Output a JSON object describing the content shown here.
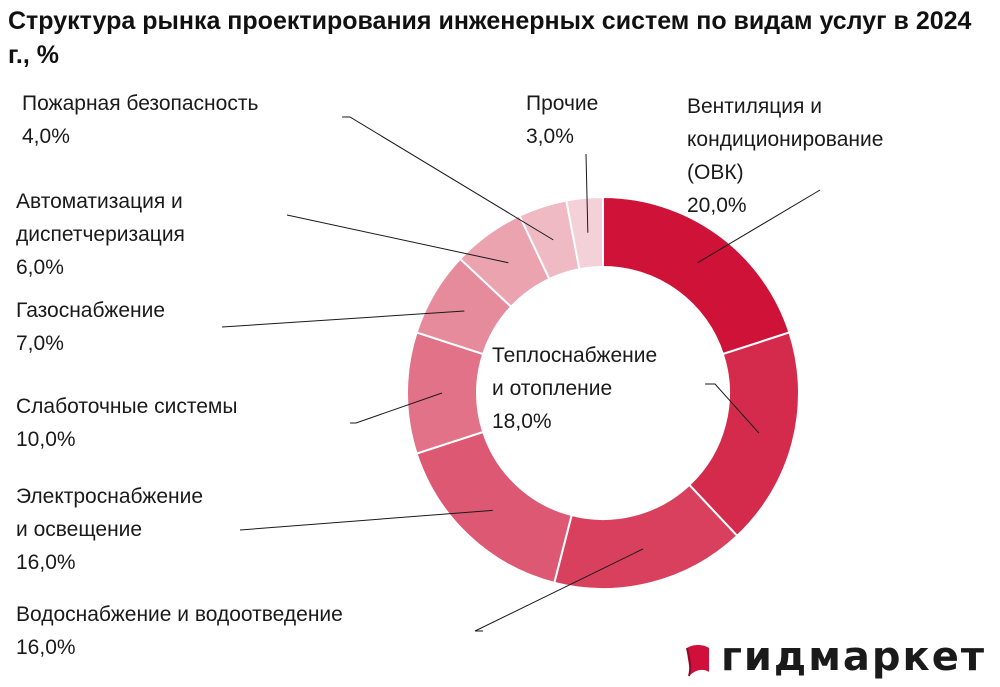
{
  "title": "Структура рынка проектирования инженерных систем по видам услуг в 2024 г., %",
  "chart_data": {
    "type": "pie",
    "variant": "donut",
    "title": "Структура рынка проектирования инженерных систем по видам услуг в 2024 г., %",
    "unit": "%",
    "slices": [
      {
        "label": "Вентиляция и кондиционирование (ОВК)",
        "value": 20.0,
        "display": "20,0%",
        "color": "#cf1237"
      },
      {
        "label": "Теплоснабжение и отопление",
        "value": 18.0,
        "display": "18,0%",
        "color": "#d42b4d"
      },
      {
        "label": "Водоснабжение и водоотведение",
        "value": 16.0,
        "display": "16,0%",
        "color": "#d8405d"
      },
      {
        "label": "Электроснабжение и освещение",
        "value": 16.0,
        "display": "16,0%",
        "color": "#dd5872"
      },
      {
        "label": "Слаботочные системы",
        "value": 10.0,
        "display": "10,0%",
        "color": "#e27287"
      },
      {
        "label": "Газоснабжение",
        "value": 7.0,
        "display": "7,0%",
        "color": "#e68b9b"
      },
      {
        "label": "Автоматизация и диспетчеризация",
        "value": 6.0,
        "display": "6,0%",
        "color": "#eba3b0"
      },
      {
        "label": "Пожарная безопасность",
        "value": 4.0,
        "display": "4,0%",
        "color": "#efbac4"
      },
      {
        "label": "Прочие",
        "value": 3.0,
        "display": "3,0%",
        "color": "#f4d1d8"
      }
    ]
  },
  "labels": {
    "ovk": {
      "lines": [
        "Вентиляция и",
        "кондиционирование",
        "(ОВК)"
      ],
      "value": "20,0%"
    },
    "heat": {
      "lines": [
        "Теплоснабжение",
        "и отопление"
      ],
      "value": "18,0%"
    },
    "water": {
      "lines": [
        "Водоснабжение и водоотведение"
      ],
      "value": "16,0%"
    },
    "elec": {
      "lines": [
        "Электроснабжение",
        "и освещение"
      ],
      "value": "16,0%"
    },
    "lowcur": {
      "lines": [
        "Слаботочные системы"
      ],
      "value": "10,0%"
    },
    "gas": {
      "lines": [
        "Газоснабжение"
      ],
      "value": "7,0%"
    },
    "auto": {
      "lines": [
        "Автоматизация и",
        "диспетчеризация"
      ],
      "value": "6,0%"
    },
    "fire": {
      "lines": [
        "Пожарная безопасность"
      ],
      "value": "4,0%"
    },
    "other": {
      "lines": [
        "Прочие"
      ],
      "value": "3,0%"
    }
  },
  "brand": {
    "name": "гидмаркет",
    "icon": "gidmarket-logo-icon",
    "color": "#d0103a"
  }
}
